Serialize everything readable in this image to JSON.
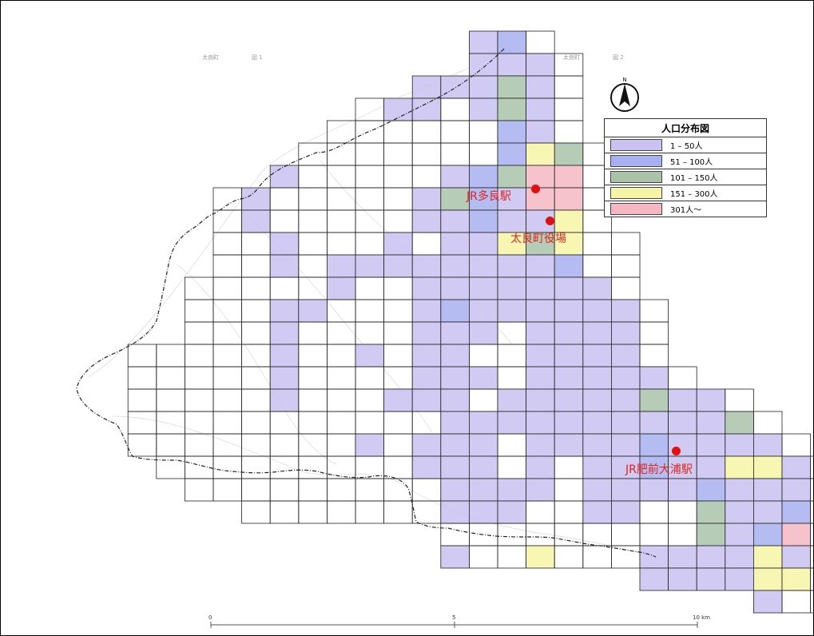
{
  "legend": {
    "title": "人口分布図",
    "items": [
      {
        "label": "1 – 50人",
        "color": "#c9c2f2"
      },
      {
        "label": "51 – 100人",
        "color": "#a7b0f0"
      },
      {
        "label": "101 – 150人",
        "color": "#a9c3a9"
      },
      {
        "label": "151 – 300人",
        "color": "#f6f4a6"
      },
      {
        "label": "301人～",
        "color": "#f5b7c3"
      }
    ]
  },
  "places": {
    "station_tara": "JR多良駅",
    "town_office": "太良町役場",
    "station_hizen_oura": "JR肥前大浦駅"
  },
  "scale": {
    "start": "0",
    "mid": "5",
    "end": "10 km"
  },
  "header_text": {
    "left_title": "太良町",
    "left_sheet": "図 1",
    "right_title": "太良町",
    "right_sheet": "図 2"
  },
  "grid_cells": [
    {
      "row": 0,
      "cols": [
        [
          14,
          1
        ],
        [
          15,
          2
        ],
        [
          16,
          0
        ]
      ]
    },
    {
      "row": 1,
      "cols": [
        [
          14,
          1
        ],
        [
          15,
          1
        ],
        [
          16,
          1
        ],
        [
          17,
          0
        ]
      ]
    },
    {
      "row": 2,
      "cols": [
        [
          12,
          1
        ],
        [
          13,
          1
        ],
        [
          14,
          1
        ],
        [
          15,
          3
        ],
        [
          16,
          1
        ],
        [
          17,
          0
        ]
      ]
    },
    {
      "row": 3,
      "cols": [
        [
          10,
          0
        ],
        [
          11,
          1
        ],
        [
          12,
          1
        ],
        [
          13,
          0
        ],
        [
          14,
          1
        ],
        [
          15,
          3
        ],
        [
          16,
          1
        ],
        [
          17,
          0
        ]
      ]
    },
    {
      "row": 4,
      "cols": [
        [
          9,
          0
        ],
        [
          10,
          0
        ],
        [
          11,
          0
        ],
        [
          12,
          0
        ],
        [
          13,
          0
        ],
        [
          14,
          0
        ],
        [
          15,
          2
        ],
        [
          16,
          1
        ],
        [
          17,
          0
        ]
      ]
    },
    {
      "row": 5,
      "cols": [
        [
          8,
          0
        ],
        [
          9,
          0
        ],
        [
          10,
          0
        ],
        [
          11,
          0
        ],
        [
          12,
          0
        ],
        [
          13,
          0
        ],
        [
          14,
          0
        ],
        [
          15,
          2
        ],
        [
          16,
          4
        ],
        [
          17,
          3
        ],
        [
          18,
          0
        ]
      ]
    },
    {
      "row": 6,
      "cols": [
        [
          7,
          1
        ],
        [
          8,
          0
        ],
        [
          9,
          0
        ],
        [
          10,
          0
        ],
        [
          11,
          0
        ],
        [
          12,
          0
        ],
        [
          13,
          1
        ],
        [
          14,
          2
        ],
        [
          15,
          3
        ],
        [
          16,
          5
        ],
        [
          17,
          5
        ],
        [
          18,
          0
        ]
      ]
    },
    {
      "row": 7,
      "cols": [
        [
          5,
          0
        ],
        [
          6,
          1
        ],
        [
          7,
          0
        ],
        [
          8,
          0
        ],
        [
          9,
          0
        ],
        [
          10,
          0
        ],
        [
          11,
          0
        ],
        [
          12,
          1
        ],
        [
          13,
          3
        ],
        [
          14,
          2
        ],
        [
          15,
          1
        ],
        [
          16,
          5
        ],
        [
          17,
          5
        ],
        [
          18,
          0
        ]
      ]
    },
    {
      "row": 8,
      "cols": [
        [
          5,
          0
        ],
        [
          6,
          1
        ],
        [
          7,
          0
        ],
        [
          8,
          0
        ],
        [
          9,
          0
        ],
        [
          10,
          0
        ],
        [
          11,
          0
        ],
        [
          12,
          1
        ],
        [
          13,
          1
        ],
        [
          14,
          2
        ],
        [
          15,
          1
        ],
        [
          16,
          1
        ],
        [
          17,
          4
        ],
        [
          18,
          0
        ]
      ]
    },
    {
      "row": 9,
      "cols": [
        [
          5,
          0
        ],
        [
          6,
          0
        ],
        [
          7,
          1
        ],
        [
          8,
          0
        ],
        [
          9,
          0
        ],
        [
          10,
          0
        ],
        [
          11,
          1
        ],
        [
          12,
          0
        ],
        [
          13,
          1
        ],
        [
          14,
          1
        ],
        [
          15,
          4
        ],
        [
          16,
          3
        ],
        [
          17,
          4
        ],
        [
          18,
          0
        ],
        [
          19,
          0
        ]
      ]
    },
    {
      "row": 10,
      "cols": [
        [
          5,
          0
        ],
        [
          6,
          0
        ],
        [
          7,
          1
        ],
        [
          8,
          0
        ],
        [
          9,
          1
        ],
        [
          10,
          1
        ],
        [
          11,
          1
        ],
        [
          12,
          1
        ],
        [
          13,
          1
        ],
        [
          14,
          1
        ],
        [
          15,
          1
        ],
        [
          16,
          1
        ],
        [
          17,
          2
        ],
        [
          18,
          0
        ],
        [
          19,
          0
        ]
      ]
    },
    {
      "row": 11,
      "cols": [
        [
          4,
          0
        ],
        [
          5,
          0
        ],
        [
          6,
          0
        ],
        [
          7,
          0
        ],
        [
          8,
          0
        ],
        [
          9,
          1
        ],
        [
          10,
          0
        ],
        [
          11,
          0
        ],
        [
          12,
          1
        ],
        [
          13,
          1
        ],
        [
          14,
          1
        ],
        [
          15,
          1
        ],
        [
          16,
          1
        ],
        [
          17,
          1
        ],
        [
          18,
          1
        ],
        [
          19,
          0
        ]
      ]
    },
    {
      "row": 12,
      "cols": [
        [
          4,
          0
        ],
        [
          5,
          0
        ],
        [
          6,
          0
        ],
        [
          7,
          1
        ],
        [
          8,
          1
        ],
        [
          9,
          0
        ],
        [
          10,
          0
        ],
        [
          11,
          0
        ],
        [
          12,
          1
        ],
        [
          13,
          2
        ],
        [
          14,
          1
        ],
        [
          15,
          1
        ],
        [
          16,
          1
        ],
        [
          17,
          1
        ],
        [
          18,
          1
        ],
        [
          19,
          1
        ],
        [
          20,
          0
        ]
      ]
    },
    {
      "row": 13,
      "cols": [
        [
          4,
          0
        ],
        [
          5,
          0
        ],
        [
          6,
          0
        ],
        [
          7,
          1
        ],
        [
          8,
          0
        ],
        [
          9,
          0
        ],
        [
          10,
          0
        ],
        [
          11,
          0
        ],
        [
          12,
          1
        ],
        [
          13,
          1
        ],
        [
          14,
          1
        ],
        [
          15,
          0
        ],
        [
          16,
          1
        ],
        [
          17,
          1
        ],
        [
          18,
          1
        ],
        [
          19,
          1
        ],
        [
          20,
          0
        ]
      ]
    },
    {
      "row": 14,
      "cols": [
        [
          2,
          0
        ],
        [
          3,
          0
        ],
        [
          4,
          0
        ],
        [
          5,
          0
        ],
        [
          6,
          0
        ],
        [
          7,
          1
        ],
        [
          8,
          0
        ],
        [
          9,
          0
        ],
        [
          10,
          1
        ],
        [
          11,
          0
        ],
        [
          12,
          1
        ],
        [
          13,
          1
        ],
        [
          14,
          0
        ],
        [
          15,
          0
        ],
        [
          16,
          1
        ],
        [
          17,
          1
        ],
        [
          18,
          1
        ],
        [
          19,
          1
        ],
        [
          20,
          0
        ]
      ]
    },
    {
      "row": 15,
      "cols": [
        [
          2,
          0
        ],
        [
          3,
          0
        ],
        [
          4,
          0
        ],
        [
          5,
          0
        ],
        [
          6,
          0
        ],
        [
          7,
          1
        ],
        [
          8,
          0
        ],
        [
          9,
          0
        ],
        [
          10,
          0
        ],
        [
          11,
          0
        ],
        [
          12,
          1
        ],
        [
          13,
          1
        ],
        [
          14,
          1
        ],
        [
          15,
          0
        ],
        [
          16,
          1
        ],
        [
          17,
          1
        ],
        [
          18,
          1
        ],
        [
          19,
          1
        ],
        [
          20,
          1
        ],
        [
          21,
          0
        ]
      ]
    },
    {
      "row": 16,
      "cols": [
        [
          2,
          0
        ],
        [
          3,
          0
        ],
        [
          4,
          0
        ],
        [
          5,
          0
        ],
        [
          6,
          0
        ],
        [
          7,
          1
        ],
        [
          8,
          0
        ],
        [
          9,
          0
        ],
        [
          10,
          0
        ],
        [
          11,
          1
        ],
        [
          12,
          1
        ],
        [
          13,
          1
        ],
        [
          14,
          0
        ],
        [
          15,
          1
        ],
        [
          16,
          1
        ],
        [
          17,
          1
        ],
        [
          18,
          1
        ],
        [
          19,
          1
        ],
        [
          20,
          3
        ],
        [
          21,
          1
        ],
        [
          22,
          1
        ],
        [
          23,
          0
        ]
      ]
    },
    {
      "row": 17,
      "cols": [
        [
          2,
          0
        ],
        [
          3,
          0
        ],
        [
          4,
          0
        ],
        [
          5,
          0
        ],
        [
          6,
          0
        ],
        [
          7,
          0
        ],
        [
          8,
          0
        ],
        [
          9,
          0
        ],
        [
          10,
          0
        ],
        [
          11,
          0
        ],
        [
          12,
          0
        ],
        [
          13,
          1
        ],
        [
          14,
          1
        ],
        [
          15,
          1
        ],
        [
          16,
          1
        ],
        [
          17,
          1
        ],
        [
          18,
          1
        ],
        [
          19,
          1
        ],
        [
          20,
          1
        ],
        [
          21,
          1
        ],
        [
          22,
          1
        ],
        [
          23,
          3
        ],
        [
          24,
          0
        ]
      ]
    },
    {
      "row": 18,
      "cols": [
        [
          2,
          0
        ],
        [
          3,
          0
        ],
        [
          4,
          0
        ],
        [
          5,
          0
        ],
        [
          6,
          0
        ],
        [
          7,
          0
        ],
        [
          8,
          0
        ],
        [
          9,
          0
        ],
        [
          10,
          1
        ],
        [
          11,
          0
        ],
        [
          12,
          1
        ],
        [
          13,
          1
        ],
        [
          14,
          1
        ],
        [
          15,
          0
        ],
        [
          16,
          1
        ],
        [
          17,
          1
        ],
        [
          18,
          1
        ],
        [
          19,
          1
        ],
        [
          20,
          2
        ],
        [
          21,
          1
        ],
        [
          22,
          1
        ],
        [
          23,
          1
        ],
        [
          24,
          1
        ],
        [
          25,
          0
        ]
      ]
    },
    {
      "row": 19,
      "cols": [
        [
          3,
          0
        ],
        [
          4,
          0
        ],
        [
          5,
          0
        ],
        [
          6,
          0
        ],
        [
          7,
          0
        ],
        [
          8,
          0
        ],
        [
          9,
          0
        ],
        [
          10,
          0
        ],
        [
          11,
          0
        ],
        [
          12,
          1
        ],
        [
          13,
          1
        ],
        [
          14,
          1
        ],
        [
          15,
          0
        ],
        [
          16,
          1
        ],
        [
          17,
          0
        ],
        [
          18,
          1
        ],
        [
          19,
          1
        ],
        [
          20,
          2
        ],
        [
          21,
          1
        ],
        [
          22,
          1
        ],
        [
          23,
          4
        ],
        [
          24,
          4
        ],
        [
          25,
          1
        ],
        [
          26,
          0
        ]
      ]
    },
    {
      "row": 20,
      "cols": [
        [
          4,
          0
        ],
        [
          5,
          0
        ],
        [
          6,
          0
        ],
        [
          7,
          0
        ],
        [
          8,
          0
        ],
        [
          9,
          0
        ],
        [
          10,
          0
        ],
        [
          11,
          0
        ],
        [
          12,
          0
        ],
        [
          13,
          1
        ],
        [
          14,
          1
        ],
        [
          15,
          1
        ],
        [
          16,
          1
        ],
        [
          17,
          0
        ],
        [
          18,
          1
        ],
        [
          19,
          1
        ],
        [
          20,
          1
        ],
        [
          21,
          1
        ],
        [
          22,
          2
        ],
        [
          23,
          1
        ],
        [
          24,
          1
        ],
        [
          25,
          1
        ],
        [
          26,
          0
        ]
      ]
    },
    {
      "row": 21,
      "cols": [
        [
          6,
          0
        ],
        [
          7,
          0
        ],
        [
          8,
          0
        ],
        [
          9,
          0
        ],
        [
          10,
          0
        ],
        [
          11,
          0
        ],
        [
          12,
          0
        ],
        [
          13,
          1
        ],
        [
          14,
          1
        ],
        [
          15,
          1
        ],
        [
          16,
          0
        ],
        [
          17,
          0
        ],
        [
          18,
          1
        ],
        [
          19,
          1
        ],
        [
          20,
          0
        ],
        [
          21,
          0
        ],
        [
          22,
          3
        ],
        [
          23,
          1
        ],
        [
          24,
          1
        ],
        [
          25,
          2
        ],
        [
          26,
          0
        ]
      ]
    },
    {
      "row": 22,
      "cols": [
        [
          13,
          0
        ],
        [
          14,
          0
        ],
        [
          15,
          0
        ],
        [
          16,
          0
        ],
        [
          17,
          0
        ],
        [
          18,
          0
        ],
        [
          19,
          0
        ],
        [
          20,
          0
        ],
        [
          21,
          0
        ],
        [
          22,
          3
        ],
        [
          23,
          1
        ],
        [
          24,
          2
        ],
        [
          25,
          5
        ],
        [
          26,
          0
        ]
      ]
    },
    {
      "row": 23,
      "cols": [
        [
          13,
          1
        ],
        [
          14,
          0
        ],
        [
          15,
          0
        ],
        [
          16,
          4
        ],
        [
          17,
          0
        ],
        [
          18,
          0
        ],
        [
          19,
          0
        ],
        [
          20,
          1
        ],
        [
          21,
          1
        ],
        [
          22,
          1
        ],
        [
          23,
          1
        ],
        [
          24,
          4
        ],
        [
          25,
          1
        ],
        [
          26,
          0
        ]
      ]
    },
    {
      "row": 24,
      "cols": [
        [
          20,
          1
        ],
        [
          21,
          1
        ],
        [
          22,
          1
        ],
        [
          23,
          1
        ],
        [
          24,
          4
        ],
        [
          25,
          4
        ],
        [
          26,
          0
        ]
      ]
    },
    {
      "row": 25,
      "cols": [
        [
          24,
          1
        ],
        [
          25,
          0
        ],
        [
          26,
          0
        ]
      ]
    }
  ]
}
